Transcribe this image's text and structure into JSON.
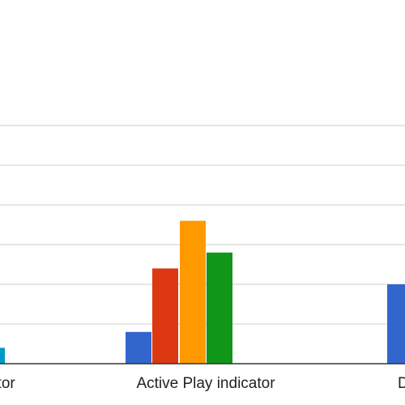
{
  "chart_data": {
    "type": "bar",
    "categories": [
      "…icator",
      "Active Play indicator",
      "D…"
    ],
    "series": [
      {
        "color": "#3366cc",
        "values": [
          null,
          8,
          20
        ]
      },
      {
        "color": "#dc3912",
        "values": [
          null,
          24,
          null
        ]
      },
      {
        "color": "#ff9900",
        "values": [
          null,
          36,
          null
        ]
      },
      {
        "color": "#109618",
        "values": [
          null,
          28,
          null
        ]
      },
      {
        "color": "#0099c6",
        "values": [
          4,
          null,
          null
        ]
      }
    ],
    "ylim": [
      0,
      60
    ],
    "y_gridlines": [
      0,
      10,
      20,
      30,
      40,
      50,
      60
    ],
    "grid": true,
    "title": "",
    "xlabel": "",
    "ylabel": ""
  }
}
